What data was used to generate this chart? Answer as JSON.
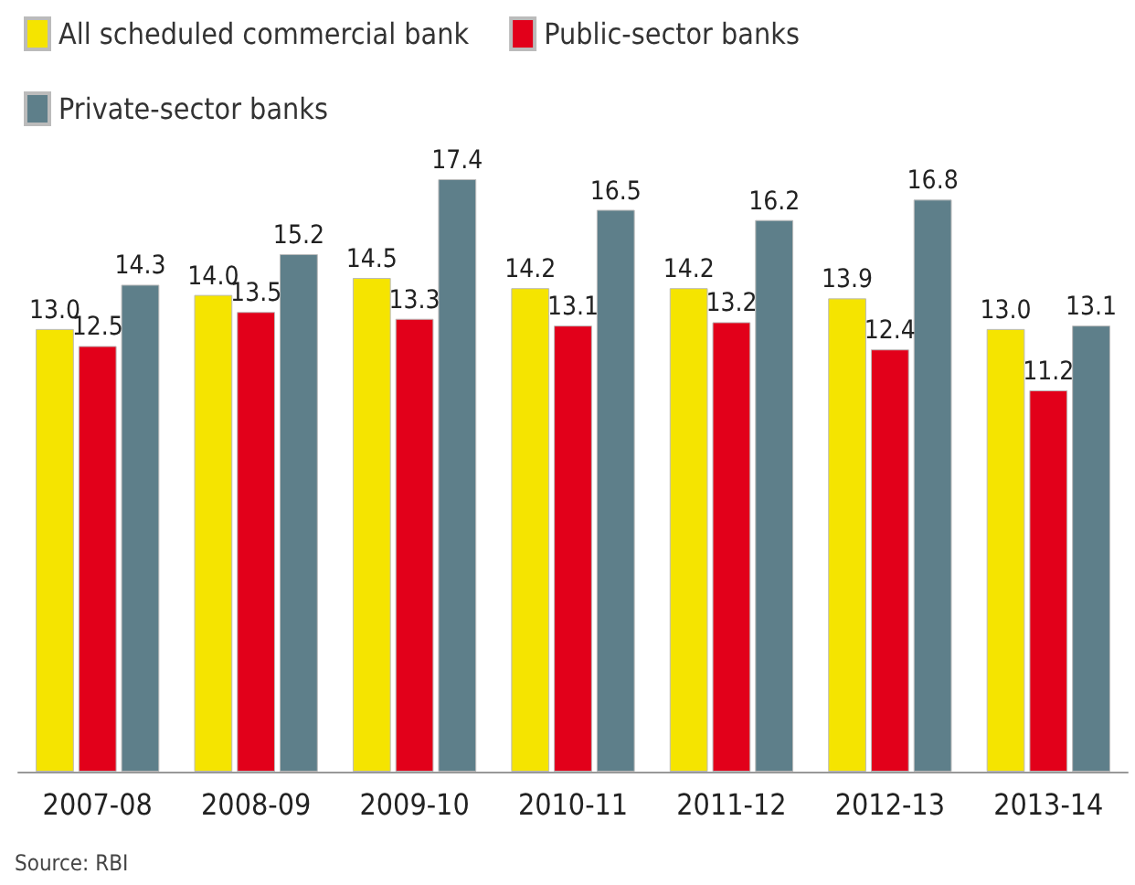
{
  "chart_data": {
    "type": "bar",
    "categories": [
      "2007-08",
      "2008-09",
      "2009-10",
      "2010-11",
      "2011-12",
      "2012-13",
      "2013-14"
    ],
    "series": [
      {
        "name": "All scheduled commercial bank",
        "color": "#f5e400",
        "values": [
          13.0,
          14.0,
          14.5,
          14.2,
          14.2,
          13.9,
          13.0
        ],
        "value_labels": [
          "13.0",
          "14.0",
          "14.5",
          "14.2",
          "14.2",
          "13.9",
          "13.0"
        ]
      },
      {
        "name": "Public-sector banks",
        "color": "#e2001a",
        "values": [
          12.5,
          13.5,
          13.3,
          13.1,
          13.2,
          12.4,
          11.2
        ],
        "value_labels": [
          "12.5",
          "13.5",
          "13.3",
          "13.1",
          "13.2",
          "12.4",
          "11.2"
        ]
      },
      {
        "name": "Private-sector banks",
        "color": "#5e7f8a",
        "values": [
          14.3,
          15.2,
          17.4,
          16.5,
          16.2,
          16.8,
          13.1
        ],
        "value_labels": [
          "14.3",
          "15.2",
          "17.4",
          "16.5",
          "16.2",
          "16.8",
          "13.1"
        ]
      }
    ],
    "legend": "top left",
    "annotations": [
      "Source: RBI"
    ]
  }
}
